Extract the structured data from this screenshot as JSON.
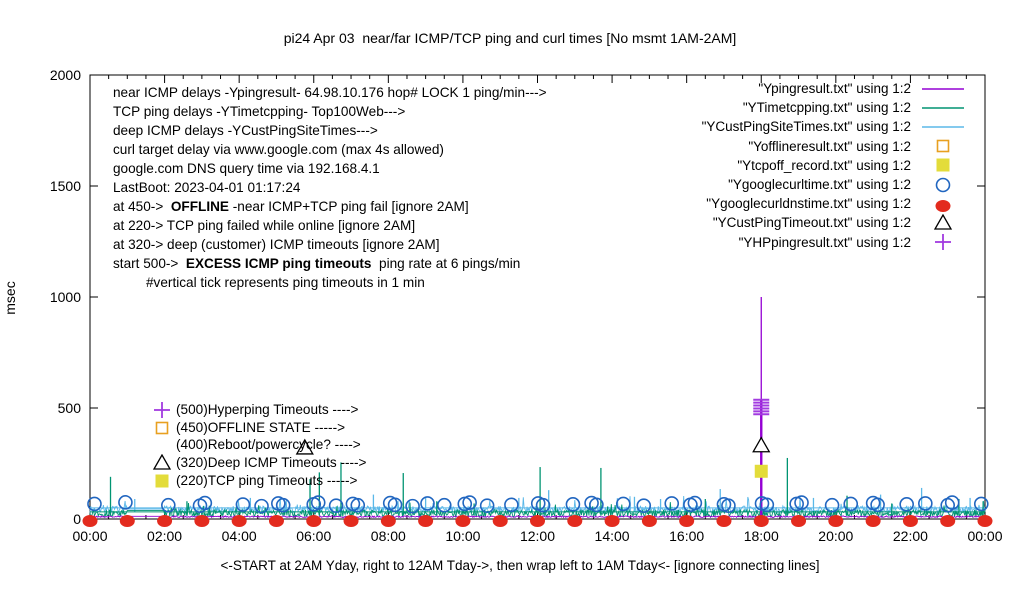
{
  "title": "pi24 Apr 03  near/far ICMP/TCP ping and curl times [No msmt 1AM-2AM]",
  "chart_data": {
    "type": "line",
    "title": "pi24 Apr 03  near/far ICMP/TCP ping and curl times [No msmt 1AM-2AM]",
    "xlabel": "<-START at 2AM Yday, right to 12AM Tday->, then wrap left to 1AM Tday<- [ignore connecting lines]",
    "ylabel": "msec",
    "ylim": [
      0,
      2000
    ],
    "xlim_hours": [
      0,
      24
    ],
    "y_ticks": [
      0,
      500,
      1000,
      1500,
      2000
    ],
    "x_tick_hours": [
      0,
      2,
      4,
      6,
      8,
      10,
      12,
      14,
      16,
      18,
      20,
      22,
      24
    ],
    "x_tick_labels": [
      "00:00",
      "02:00",
      "04:00",
      "06:00",
      "08:00",
      "10:00",
      "12:00",
      "14:00",
      "16:00",
      "18:00",
      "20:00",
      "22:00",
      "00:00"
    ],
    "minor_tick_every_hours": 0.5,
    "grid": false,
    "legend_position": "top-right-inside",
    "no_measurement_gap_hours": [
      1,
      2
    ],
    "series": [
      {
        "label": "\"Ypingresult.txt\" using 1:2",
        "style": "line",
        "color": "#9400D3",
        "baseline_range": [
          7,
          14
        ],
        "gap_value": 12,
        "jitter_spike": 0,
        "spikes": [
          [
            18.0,
            1000
          ]
        ]
      },
      {
        "label": "\"YTimetcpping.txt\" using 1:2",
        "style": "line",
        "color": "#009472",
        "baseline_range": [
          10,
          42
        ],
        "gap_value": 38,
        "jitter_spike": 45,
        "hline": 32,
        "spikes": [
          [
            0.55,
            190
          ],
          [
            2.6,
            80
          ],
          [
            3.2,
            60
          ],
          [
            5.9,
            180
          ],
          [
            6.15,
            210
          ],
          [
            6.73,
            255
          ],
          [
            8.4,
            207
          ],
          [
            9.3,
            80
          ],
          [
            10.3,
            70
          ],
          [
            12.07,
            234
          ],
          [
            13.7,
            230
          ],
          [
            16.5,
            90
          ],
          [
            18.7,
            275
          ],
          [
            20.3,
            105
          ],
          [
            21.5,
            70
          ],
          [
            23.3,
            90
          ],
          [
            23.95,
            80
          ]
        ]
      },
      {
        "label": "\"YCustPingSiteTimes.txt\" using 1:2",
        "style": "line",
        "color": "#5BB8E8",
        "baseline_range": [
          28,
          58
        ],
        "gap_value": 45,
        "jitter_spike": 55,
        "hline": 50,
        "spikes": [
          [
            1.2,
            90
          ],
          [
            4.3,
            95
          ],
          [
            7.6,
            110
          ],
          [
            9.0,
            100
          ],
          [
            11.5,
            95
          ],
          [
            12.3,
            130
          ],
          [
            14.6,
            100
          ],
          [
            15.3,
            90
          ],
          [
            16.9,
            135
          ],
          [
            19.4,
            95
          ],
          [
            21.2,
            110
          ],
          [
            22.3,
            140
          ],
          [
            23.6,
            95
          ]
        ]
      },
      {
        "label": "\"Yofflineresult.txt\" using 1:2",
        "style": "open-square",
        "color": "#E8A020",
        "points": []
      },
      {
        "label": "\"Ytcpoff_record.txt\" using 1:2",
        "style": "filled-square",
        "color": "#E3DC3A",
        "points": [
          [
            18.0,
            215
          ]
        ]
      },
      {
        "label": "\"Ygooglecurltime.txt\" using 1:2",
        "style": "open-circle",
        "color": "#2166C0",
        "points": [
          [
            0.12,
            68
          ],
          [
            0.95,
            75
          ],
          [
            2.1,
            62
          ],
          [
            2.95,
            60
          ],
          [
            3.08,
            72
          ],
          [
            4.1,
            65
          ],
          [
            4.6,
            58
          ],
          [
            5.05,
            70
          ],
          [
            5.18,
            62
          ],
          [
            6.0,
            66
          ],
          [
            6.12,
            74
          ],
          [
            6.6,
            60
          ],
          [
            7.05,
            68
          ],
          [
            7.18,
            62
          ],
          [
            8.05,
            72
          ],
          [
            8.18,
            64
          ],
          [
            8.65,
            58
          ],
          [
            9.05,
            70
          ],
          [
            9.5,
            62
          ],
          [
            10.05,
            68
          ],
          [
            10.18,
            74
          ],
          [
            10.65,
            60
          ],
          [
            11.3,
            64
          ],
          [
            12.02,
            70
          ],
          [
            12.15,
            62
          ],
          [
            12.95,
            66
          ],
          [
            13.45,
            72
          ],
          [
            13.58,
            64
          ],
          [
            14.3,
            68
          ],
          [
            14.85,
            60
          ],
          [
            15.6,
            70
          ],
          [
            16.1,
            64
          ],
          [
            16.22,
            72
          ],
          [
            17.0,
            66
          ],
          [
            17.12,
            60
          ],
          [
            18.02,
            70
          ],
          [
            18.15,
            64
          ],
          [
            18.95,
            68
          ],
          [
            19.08,
            74
          ],
          [
            19.9,
            62
          ],
          [
            20.4,
            68
          ],
          [
            21.0,
            72
          ],
          [
            21.12,
            64
          ],
          [
            21.9,
            66
          ],
          [
            22.4,
            70
          ],
          [
            23.0,
            62
          ],
          [
            23.12,
            74
          ],
          [
            23.9,
            68
          ]
        ]
      },
      {
        "label": "\"Ygooglecurldnstime.txt\" using 1:2",
        "style": "filled-circle",
        "color": "#E32B1E",
        "points": [
          [
            0,
            0
          ],
          [
            1,
            0
          ],
          [
            2,
            0
          ],
          [
            3,
            0
          ],
          [
            4,
            0
          ],
          [
            5,
            0
          ],
          [
            6,
            0
          ],
          [
            7,
            0
          ],
          [
            8,
            0
          ],
          [
            9,
            0
          ],
          [
            10,
            0
          ],
          [
            11,
            0
          ],
          [
            12,
            0
          ],
          [
            13,
            0
          ],
          [
            14,
            0
          ],
          [
            15,
            0
          ],
          [
            16,
            0
          ],
          [
            17,
            0
          ],
          [
            18,
            0
          ],
          [
            19,
            0
          ],
          [
            20,
            0
          ],
          [
            21,
            0
          ],
          [
            22,
            0
          ],
          [
            23,
            0
          ],
          [
            24,
            0
          ]
        ]
      },
      {
        "label": "\"YCustPingTimeout.txt\" using 1:2",
        "style": "open-triangle",
        "color": "#000000",
        "points": [
          [
            5.76,
            320
          ],
          [
            18.0,
            330
          ]
        ]
      },
      {
        "label": "\"YHPpingresult.txt\" using 1:2",
        "style": "plus",
        "color": "#A23BE0",
        "points": [
          [
            18.0,
            472
          ],
          [
            18.0,
            485
          ],
          [
            18.0,
            498
          ],
          [
            18.0,
            511
          ],
          [
            18.0,
            524
          ],
          [
            18.0,
            537
          ]
        ]
      }
    ]
  },
  "annotations": {
    "info_lines": [
      {
        "segs": [
          {
            "t": "near ICMP delays -Ypingresult- 64.98.10.176 hop# LOCK 1 ping/min--->"
          }
        ]
      },
      {
        "segs": [
          {
            "t": "TCP ping delays -YTimetcpping- Top100Web--->"
          }
        ]
      },
      {
        "segs": [
          {
            "t": "deep ICMP delays -YCustPingSiteTimes--->"
          }
        ]
      },
      {
        "segs": [
          {
            "t": "curl target delay via www.google.com (max 4s allowed)"
          }
        ]
      },
      {
        "segs": [
          {
            "t": "google.com DNS query time via 192.168.4.1"
          }
        ]
      },
      {
        "segs": [
          {
            "t": "LastBoot: 2023-04-01 01:17:24"
          }
        ]
      },
      {
        "segs": [
          {
            "t": "at 450->  "
          },
          {
            "t": "OFFLINE",
            "b": 1
          },
          {
            "t": " -near ICMP+TCP ping fail [ignore 2AM]"
          }
        ]
      },
      {
        "segs": [
          {
            "t": "at 220-> TCP ping failed while online [ignore 2AM]"
          }
        ]
      },
      {
        "segs": [
          {
            "t": "at 320-> deep (customer) ICMP timeouts [ignore 2AM]"
          }
        ]
      },
      {
        "segs": [
          {
            "t": "start 500->  "
          },
          {
            "t": "EXCESS ICMP ping timeouts",
            "b": 1
          },
          {
            "t": "  ping rate at 6 pings/min"
          }
        ]
      },
      {
        "segs": [
          {
            "t": "#vertical tick represents ping timeouts in 1 min"
          }
        ],
        "indent": 1
      }
    ],
    "level_labels": [
      {
        "marker": "plus",
        "color": "#A23BE0",
        "text": "(500)Hyperping Timeouts ---->"
      },
      {
        "marker": "open-square",
        "color": "#E8A020",
        "text": "(450)OFFLINE STATE ----->"
      },
      {
        "marker": "none",
        "color": "#000000",
        "text": "(400)Reboot/powercycle? ---->"
      },
      {
        "marker": "open-triangle",
        "color": "#000000",
        "text": "(320)Deep ICMP Timeouts ---->"
      },
      {
        "marker": "filled-square",
        "color": "#E3DC3A",
        "text": "(220)TCP ping Timeouts ----->"
      }
    ]
  }
}
